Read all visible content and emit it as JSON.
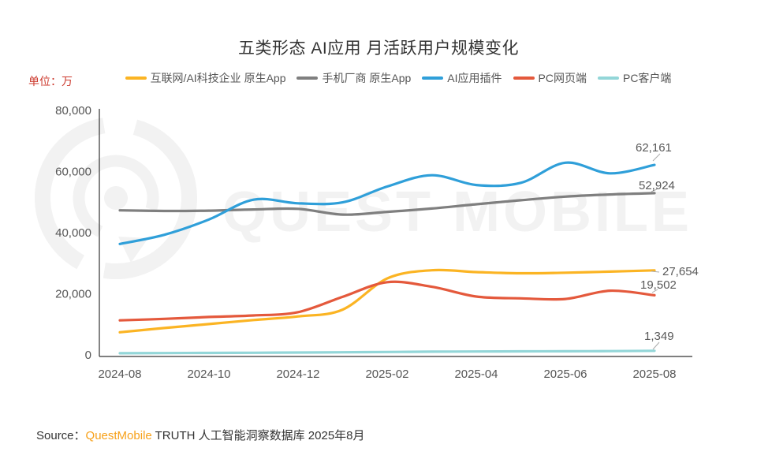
{
  "title": "五类形态 AI应用 月活跃用户规模变化",
  "unit_label": "单位：万",
  "watermark": "QUEST MOBILE",
  "source": {
    "prefix": "Source：",
    "brand": "QuestMobile",
    "suffix": " TRUTH 人工智能洞察数据库 2025年8月"
  },
  "colors": {
    "axis": "#333333",
    "tick_text": "#555555",
    "value_label_text": "#595959",
    "unit_text": "#CC3A2E",
    "brand_orange": "#F7A11A",
    "watermark": "#F2F2F2",
    "leader_line": "#AAAAAA"
  },
  "chart_data": {
    "type": "line",
    "title": "五类形态 AI应用 月活跃用户规模变化",
    "unit": "万",
    "grid": false,
    "legend_position": "top",
    "smooth": true,
    "ylim": [
      0,
      80000
    ],
    "y_ticks": [
      {
        "v": 0,
        "label": "0"
      },
      {
        "v": 20000,
        "label": "20,000"
      },
      {
        "v": 40000,
        "label": "40,000"
      },
      {
        "v": 60000,
        "label": "60,000"
      },
      {
        "v": 80000,
        "label": "80,000"
      }
    ],
    "x": [
      "2024-08",
      "2024-09",
      "2024-10",
      "2024-11",
      "2024-12",
      "2025-01",
      "2025-02",
      "2025-03",
      "2025-04",
      "2025-05",
      "2025-06",
      "2025-07",
      "2025-08"
    ],
    "x_tick_indices": [
      0,
      2,
      4,
      6,
      8,
      10,
      12
    ],
    "series": [
      {
        "key": "internet-ai-native-app",
        "name": "互联网/AI科技企业 原生App",
        "color": "#FBB423",
        "values": [
          7400,
          8800,
          10100,
          11400,
          12600,
          14800,
          25000,
          27700,
          27100,
          26700,
          26900,
          27250,
          27654
        ],
        "end_label": {
          "text": "27,654",
          "x": 840,
          "y": 349,
          "leader": [
            826,
            344,
            836,
            345
          ]
        }
      },
      {
        "key": "phone-vendor-native-app",
        "name": "手机厂商 原生App",
        "color": "#7F7F7F",
        "values": [
          47300,
          47100,
          47200,
          47600,
          47800,
          45900,
          46800,
          47900,
          49300,
          50600,
          51800,
          52500,
          52924
        ],
        "end_label": {
          "text": "52,924",
          "x": 810,
          "y": 240,
          "leader": [
            826,
            243,
            833,
            240
          ]
        }
      },
      {
        "key": "ai-app-plugin",
        "name": "AI应用插件",
        "color": "#2F9FD9",
        "values": [
          36300,
          39300,
          44300,
          50800,
          49600,
          49900,
          55100,
          58800,
          55600,
          56300,
          62900,
          59400,
          62161
        ],
        "end_label": {
          "text": "62,161",
          "x": 806,
          "y": 192,
          "leader": [
            828,
            204,
            837,
            195
          ]
        }
      },
      {
        "key": "pc-web",
        "name": "PC网页端",
        "color": "#E4593C",
        "values": [
          11300,
          11800,
          12400,
          12900,
          14000,
          19000,
          23800,
          22300,
          19100,
          18500,
          18300,
          21000,
          19502
        ],
        "end_label": {
          "text": "19,502",
          "x": 812,
          "y": 366,
          "leader": [
            827,
            371,
            834,
            367
          ]
        }
      },
      {
        "key": "pc-client",
        "name": "PC客户端",
        "color": "#93D6D8",
        "values": [
          550,
          600,
          650,
          700,
          780,
          850,
          950,
          1050,
          1100,
          1150,
          1200,
          1250,
          1349
        ],
        "end_label": {
          "text": "1,349",
          "x": 817,
          "y": 431,
          "leader": [
            828,
            443,
            836,
            434
          ]
        }
      }
    ]
  }
}
